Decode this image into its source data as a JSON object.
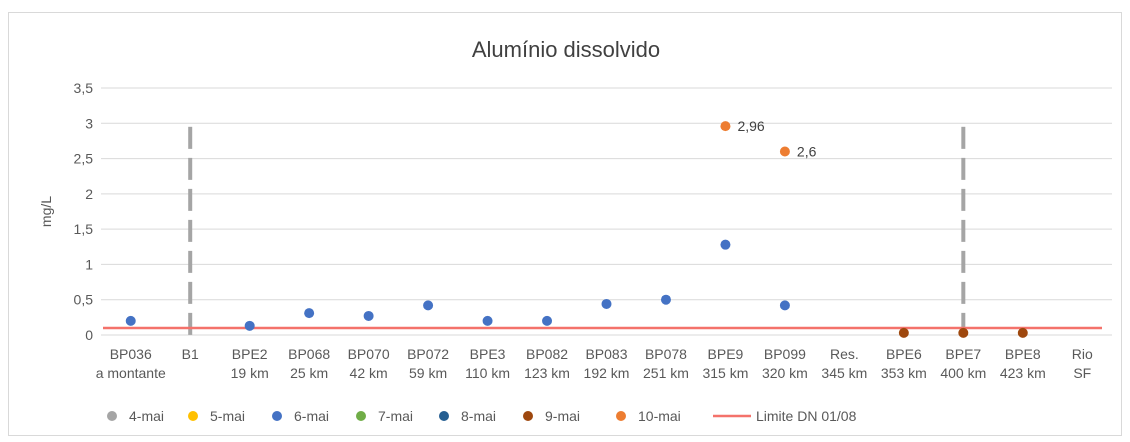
{
  "chart_data": {
    "type": "scatter",
    "title": "Alumínio dissolvido",
    "ylabel": "mg/L",
    "xlabel": "",
    "ylim": [
      0,
      3.5
    ],
    "yticks": [
      "0",
      "0,5",
      "1",
      "1,5",
      "2",
      "2,5",
      "3",
      "3,5"
    ],
    "categories": [
      [
        "BP036",
        "a montante"
      ],
      [
        "B1",
        ""
      ],
      [
        "BPE2",
        "19 km"
      ],
      [
        "BP068",
        "25 km"
      ],
      [
        "BP070",
        "42 km"
      ],
      [
        "BP072",
        "59 km"
      ],
      [
        "BPE3",
        "110 km"
      ],
      [
        "BP082",
        "123 km"
      ],
      [
        "BP083",
        "192 km"
      ],
      [
        "BP078",
        "251 km"
      ],
      [
        "BPE9",
        "315 km"
      ],
      [
        "BP099",
        "320 km"
      ],
      [
        "Res.",
        "345 km"
      ],
      [
        "BPE6",
        "353 km"
      ],
      [
        "BPE7",
        "400 km"
      ],
      [
        "BPE8",
        "423 km"
      ],
      [
        "Rio",
        "SF"
      ]
    ],
    "series": [
      {
        "name": "4-mai",
        "color": "#a5a5a5",
        "points": []
      },
      {
        "name": "5-mai",
        "color": "#ffc000",
        "points": []
      },
      {
        "name": "6-mai",
        "color": "#4472c4",
        "points": [
          [
            0,
            0.2
          ],
          [
            2,
            0.13
          ],
          [
            3,
            0.31
          ],
          [
            4,
            0.27
          ],
          [
            5,
            0.42
          ],
          [
            6,
            0.2
          ],
          [
            7,
            0.2
          ],
          [
            8,
            0.44
          ],
          [
            9,
            0.5
          ],
          [
            10,
            1.28
          ],
          [
            11,
            0.42
          ]
        ]
      },
      {
        "name": "7-mai",
        "color": "#70ad47",
        "points": []
      },
      {
        "name": "8-mai",
        "color": "#255e91",
        "points": []
      },
      {
        "name": "9-mai",
        "color": "#9e480e",
        "points": [
          [
            13,
            0.03
          ],
          [
            14,
            0.03
          ],
          [
            15,
            0.03
          ]
        ]
      },
      {
        "name": "10-mai",
        "color": "#ed7d31",
        "points": [
          [
            10,
            2.96
          ],
          [
            11,
            2.6
          ]
        ]
      }
    ],
    "data_labels": [
      {
        "series": "10-mai",
        "category": 10,
        "value": 2.96,
        "text": "2,96"
      },
      {
        "series": "10-mai",
        "category": 11,
        "value": 2.6,
        "text": "2,6"
      }
    ],
    "reference_line": {
      "name": "Limite DN 01/08",
      "value": 0.1,
      "color": "#f4726b"
    },
    "dividers": {
      "color": "#a5a5a5",
      "between_categories": [
        [
          1,
          2
        ],
        [
          14,
          15
        ]
      ]
    },
    "legend_position": "bottom",
    "grid": true,
    "gridline_color": "#d9d9d9"
  }
}
